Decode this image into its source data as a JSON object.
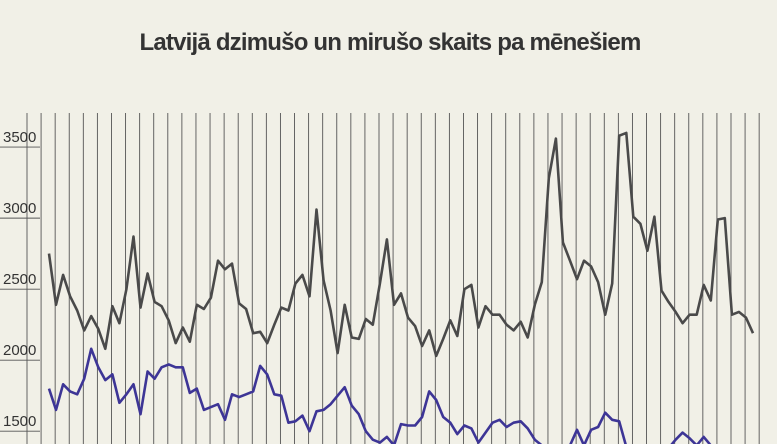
{
  "chart_data": {
    "type": "line",
    "title": "Latvijā dzimušo un mirušo skaits pa mēnešiem",
    "ylim": [
      1410,
      3740
    ],
    "yticks": [
      1500,
      2000,
      2500,
      3000,
      3500
    ],
    "series": [
      {
        "color": "#4a4a4a",
        "values": [
          2750,
          2390,
          2600,
          2450,
          2350,
          2210,
          2310,
          2220,
          2080,
          2380,
          2260,
          2500,
          2870,
          2370,
          2610,
          2410,
          2380,
          2280,
          2120,
          2230,
          2130,
          2390,
          2360,
          2440,
          2700,
          2640,
          2680,
          2400,
          2360,
          2190,
          2200,
          2120,
          2250,
          2370,
          2350,
          2540,
          2600,
          2450,
          3060,
          2560,
          2350,
          2050,
          2390,
          2160,
          2150,
          2290,
          2250,
          2540,
          2850,
          2390,
          2470,
          2300,
          2240,
          2100,
          2210,
          2030,
          2150,
          2280,
          2170,
          2500,
          2530,
          2230,
          2380,
          2320,
          2320,
          2250,
          2210,
          2270,
          2160,
          2390,
          2550,
          3280,
          3560,
          2830,
          2700,
          2570,
          2700,
          2660,
          2550,
          2320,
          2540,
          3580,
          3600,
          3010,
          2960,
          2770,
          3010,
          2490,
          2410,
          2340,
          2260,
          2320,
          2320,
          2530,
          2420,
          2990,
          3000,
          2320,
          2340,
          2300,
          2190
        ]
      },
      {
        "color": "#3d3596",
        "values": [
          1800,
          1650,
          1830,
          1780,
          1760,
          1870,
          2080,
          1950,
          1860,
          1900,
          1700,
          1760,
          1830,
          1620,
          1920,
          1870,
          1950,
          1970,
          1950,
          1950,
          1770,
          1800,
          1650,
          1670,
          1690,
          1580,
          1760,
          1740,
          1760,
          1780,
          1960,
          1900,
          1760,
          1750,
          1560,
          1570,
          1610,
          1500,
          1640,
          1650,
          1690,
          1750,
          1810,
          1680,
          1620,
          1500,
          1440,
          1420,
          1460,
          1400,
          1550,
          1540,
          1540,
          1600,
          1780,
          1720,
          1600,
          1560,
          1480,
          1540,
          1520,
          1420,
          1490,
          1560,
          1580,
          1530,
          1560,
          1570,
          1520,
          1440,
          1400,
          1380,
          1400,
          1380,
          1400,
          1510,
          1400,
          1510,
          1530,
          1630,
          1580,
          1570,
          1390,
          1380,
          1400,
          1380,
          1400,
          1400,
          1380,
          1440,
          1490,
          1450,
          1400,
          1460,
          1400,
          1380,
          1400,
          1390,
          1380,
          1380,
          1380
        ]
      }
    ]
  }
}
